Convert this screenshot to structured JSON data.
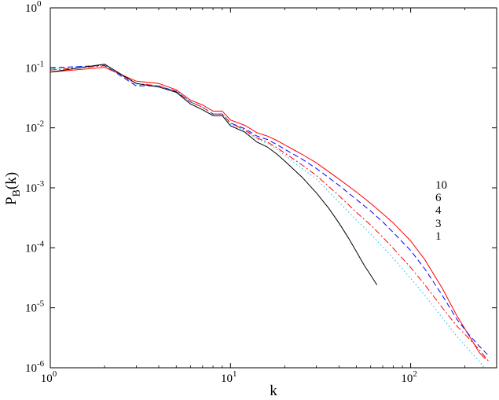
{
  "chart_data": {
    "type": "line",
    "title": "",
    "xlabel": "k",
    "ylabel": "P",
    "ylabel_sub": "B",
    "ylabel_suffix": "(k)",
    "xscale": "log",
    "yscale": "log",
    "xlim": [
      1,
      300
    ],
    "ylim": [
      1e-06,
      1
    ],
    "grid": false,
    "x_ticks": [
      {
        "value": 1,
        "base": "10",
        "exp": "0"
      },
      {
        "value": 10,
        "base": "10",
        "exp": "1"
      },
      {
        "value": 100,
        "base": "10",
        "exp": "2"
      }
    ],
    "y_ticks": [
      {
        "value": 1e-06,
        "base": "10",
        "exp": "-6"
      },
      {
        "value": 1e-05,
        "base": "10",
        "exp": "-5"
      },
      {
        "value": 0.0001,
        "base": "10",
        "exp": "-4"
      },
      {
        "value": 0.001,
        "base": "10",
        "exp": "-3"
      },
      {
        "value": 0.01,
        "base": "10",
        "exp": "-2"
      },
      {
        "value": 0.1,
        "base": "10",
        "exp": "-1"
      },
      {
        "value": 1,
        "base": "10",
        "exp": "0"
      }
    ],
    "legend_position": "right",
    "legend_entries": [
      "10",
      "6",
      "4",
      "3",
      "1"
    ],
    "series": [
      {
        "name": "10",
        "color": "#ff0000",
        "dash": "solid",
        "x": [
          1,
          2,
          3,
          4,
          5,
          6,
          7,
          8,
          9,
          10,
          12,
          14,
          16,
          18,
          20,
          25,
          30,
          40,
          50,
          60,
          70,
          80,
          100,
          120,
          150,
          180,
          210,
          240,
          260
        ],
        "y": [
          0.085,
          0.102,
          0.06,
          0.055,
          0.043,
          0.029,
          0.024,
          0.019,
          0.019,
          0.0135,
          0.011,
          0.0083,
          0.0073,
          0.0062,
          0.0052,
          0.0036,
          0.0026,
          0.0014,
          0.00085,
          0.00055,
          0.00037,
          0.00026,
          0.00013,
          6.3e-05,
          2.1e-05,
          7.5e-06,
          3.5e-06,
          1.8e-06,
          1.4e-06
        ]
      },
      {
        "name": "6",
        "color": "#0000ff",
        "dash": "dashed",
        "x": [
          1,
          2,
          3,
          4,
          5,
          6,
          7,
          8,
          9,
          10,
          12,
          14,
          16,
          18,
          20,
          25,
          30,
          40,
          50,
          60,
          70,
          80,
          100,
          120,
          150,
          180,
          210,
          240,
          270
        ],
        "y": [
          0.1,
          0.11,
          0.05,
          0.05,
          0.04,
          0.027,
          0.022,
          0.017,
          0.017,
          0.012,
          0.0097,
          0.0073,
          0.0064,
          0.0053,
          0.0044,
          0.003,
          0.0021,
          0.0011,
          0.00064,
          0.00041,
          0.00027,
          0.00018,
          9e-05,
          4.4e-05,
          1.6e-05,
          6.5e-06,
          3.6e-06,
          2.3e-06,
          1.6e-06
        ]
      },
      {
        "name": "4",
        "color": "#ff0000",
        "dash": "dashdot",
        "x": [
          1,
          2,
          3,
          4,
          5,
          6,
          7,
          8,
          9,
          10,
          12,
          14,
          16,
          18,
          20,
          25,
          30,
          40,
          50,
          60,
          70,
          80,
          100,
          120,
          150,
          180,
          210,
          240,
          270
        ],
        "y": [
          0.092,
          0.108,
          0.055,
          0.05,
          0.041,
          0.027,
          0.022,
          0.017,
          0.017,
          0.012,
          0.0092,
          0.0068,
          0.0058,
          0.0047,
          0.0038,
          0.0024,
          0.0016,
          0.00074,
          0.00039,
          0.00024,
          0.00015,
          9.8e-05,
          4.7e-05,
          2.4e-05,
          1e-05,
          5e-06,
          3.1e-06,
          2e-06,
          1.3e-06
        ]
      },
      {
        "name": "3",
        "color": "#00bfff",
        "dash": "dotted",
        "x": [
          1,
          2,
          3,
          4,
          5,
          6,
          7,
          8,
          9,
          10,
          12,
          14,
          16,
          18,
          20,
          25,
          30,
          40,
          50,
          60,
          70,
          80,
          100,
          120,
          150,
          180,
          210,
          240,
          270
        ],
        "y": [
          0.095,
          0.112,
          0.052,
          0.05,
          0.041,
          0.027,
          0.022,
          0.017,
          0.017,
          0.0115,
          0.009,
          0.0065,
          0.0055,
          0.0044,
          0.0035,
          0.0021,
          0.0014,
          0.00058,
          0.00029,
          0.00017,
          0.000103,
          6.7e-05,
          3.1e-05,
          1.6e-05,
          6.8e-06,
          3.4e-06,
          2e-06,
          1.3e-06,
          8e-07
        ]
      },
      {
        "name": "1",
        "color": "#000000",
        "dash": "solid",
        "x": [
          1,
          2,
          3,
          4,
          5,
          6,
          7,
          8,
          9,
          10,
          12,
          14,
          16,
          18,
          20,
          25,
          30,
          35,
          40,
          45,
          50,
          55,
          60,
          65
        ],
        "y": [
          0.085,
          0.115,
          0.055,
          0.048,
          0.039,
          0.025,
          0.02,
          0.016,
          0.016,
          0.0108,
          0.0085,
          0.0058,
          0.0048,
          0.0037,
          0.0028,
          0.0015,
          0.00082,
          0.00046,
          0.00026,
          0.000148,
          8.6e-05,
          5.2e-05,
          3.5e-05,
          2.4e-05
        ]
      }
    ]
  }
}
